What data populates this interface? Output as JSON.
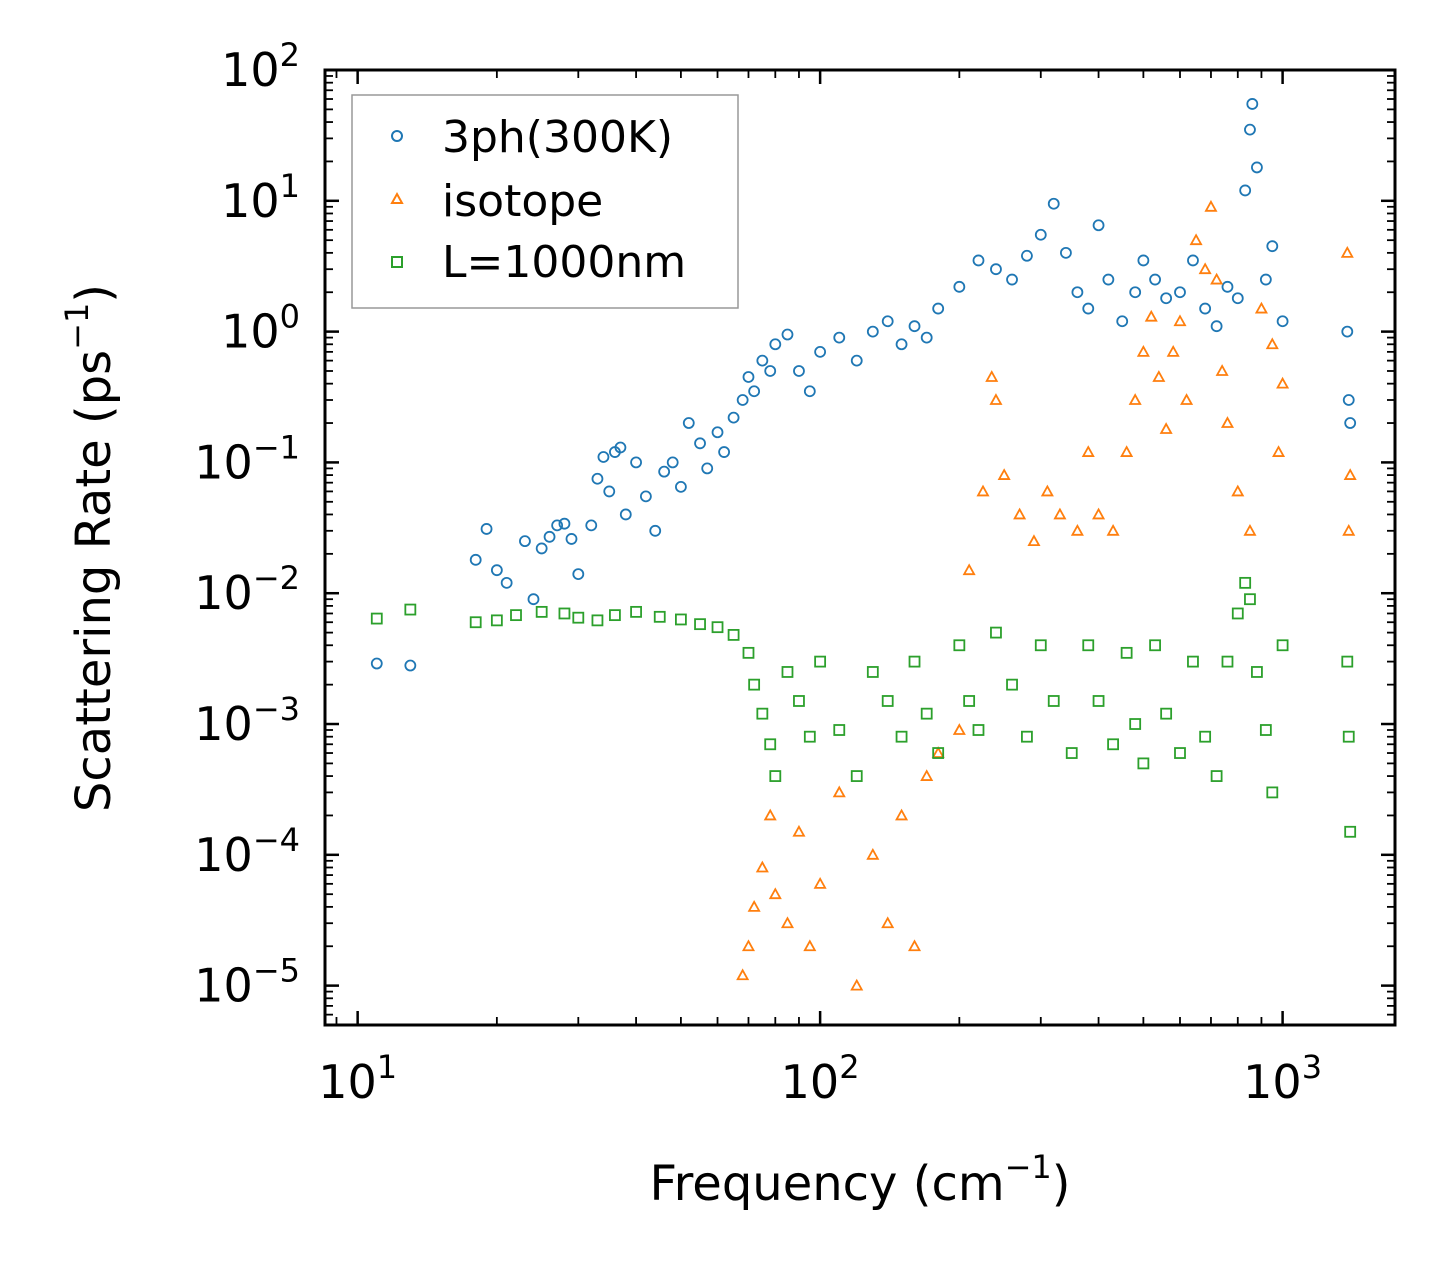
{
  "chart_data": {
    "type": "scatter",
    "title": "",
    "xlabel": {
      "text": "Frequency (cm",
      "sup": "−1",
      "tail": ")"
    },
    "ylabel": {
      "text": "Scattering Rate (ps",
      "sup": "−1",
      "tail": ")"
    },
    "xscale": "log",
    "yscale": "log",
    "xlim": [
      8.5,
      1750
    ],
    "ylim": [
      5e-06,
      100
    ],
    "x_ticks": [
      {
        "value": 10,
        "base": "10",
        "exp": "1"
      },
      {
        "value": 100,
        "base": "10",
        "exp": "2"
      },
      {
        "value": 1000,
        "base": "10",
        "exp": "3"
      }
    ],
    "y_ticks": [
      {
        "value": 100,
        "base": "10",
        "exp": "2"
      },
      {
        "value": 10,
        "base": "10",
        "exp": "1"
      },
      {
        "value": 1,
        "base": "10",
        "exp": "0"
      },
      {
        "value": 0.1,
        "base": "10",
        "exp": "−1"
      },
      {
        "value": 0.01,
        "base": "10",
        "exp": "−2"
      },
      {
        "value": 0.001,
        "base": "10",
        "exp": "−3"
      },
      {
        "value": 0.0001,
        "base": "10",
        "exp": "−4"
      },
      {
        "value": 1e-05,
        "base": "10",
        "exp": "−5"
      }
    ],
    "legend_position": "top-left",
    "series": [
      {
        "name": "3ph(300K)",
        "marker": "circle",
        "color": "#1f77b4",
        "points": [
          [
            11,
            0.0029
          ],
          [
            13,
            0.0028
          ],
          [
            18,
            0.018
          ],
          [
            19,
            0.031
          ],
          [
            20,
            0.015
          ],
          [
            21,
            0.012
          ],
          [
            23,
            0.025
          ],
          [
            24,
            0.009
          ],
          [
            25,
            0.022
          ],
          [
            26,
            0.027
          ],
          [
            27,
            0.033
          ],
          [
            28,
            0.034
          ],
          [
            29,
            0.026
          ],
          [
            30,
            0.014
          ],
          [
            32,
            0.033
          ],
          [
            33,
            0.075
          ],
          [
            34,
            0.11
          ],
          [
            35,
            0.06
          ],
          [
            36,
            0.12
          ],
          [
            37,
            0.13
          ],
          [
            38,
            0.04
          ],
          [
            40,
            0.1
          ],
          [
            42,
            0.055
          ],
          [
            44,
            0.03
          ],
          [
            46,
            0.085
          ],
          [
            48,
            0.1
          ],
          [
            50,
            0.065
          ],
          [
            52,
            0.2
          ],
          [
            55,
            0.14
          ],
          [
            57,
            0.09
          ],
          [
            60,
            0.17
          ],
          [
            62,
            0.12
          ],
          [
            65,
            0.22
          ],
          [
            68,
            0.3
          ],
          [
            70,
            0.45
          ],
          [
            72,
            0.35
          ],
          [
            75,
            0.6
          ],
          [
            78,
            0.5
          ],
          [
            80,
            0.8
          ],
          [
            85,
            0.95
          ],
          [
            90,
            0.5
          ],
          [
            95,
            0.35
          ],
          [
            100,
            0.7
          ],
          [
            110,
            0.9
          ],
          [
            120,
            0.6
          ],
          [
            130,
            1.0
          ],
          [
            140,
            1.2
          ],
          [
            150,
            0.8
          ],
          [
            160,
            1.1
          ],
          [
            170,
            0.9
          ],
          [
            180,
            1.5
          ],
          [
            200,
            2.2
          ],
          [
            220,
            3.5
          ],
          [
            240,
            3.0
          ],
          [
            260,
            2.5
          ],
          [
            280,
            3.8
          ],
          [
            300,
            5.5
          ],
          [
            320,
            9.5
          ],
          [
            340,
            4.0
          ],
          [
            360,
            2.0
          ],
          [
            380,
            1.5
          ],
          [
            400,
            6.5
          ],
          [
            420,
            2.5
          ],
          [
            450,
            1.2
          ],
          [
            480,
            2.0
          ],
          [
            500,
            3.5
          ],
          [
            530,
            2.5
          ],
          [
            560,
            1.8
          ],
          [
            600,
            2.0
          ],
          [
            640,
            3.5
          ],
          [
            680,
            1.5
          ],
          [
            720,
            1.1
          ],
          [
            760,
            2.2
          ],
          [
            800,
            1.8
          ],
          [
            830,
            12.0
          ],
          [
            850,
            35.0
          ],
          [
            860,
            55.0
          ],
          [
            880,
            18.0
          ],
          [
            920,
            2.5
          ],
          [
            950,
            4.5
          ],
          [
            1000,
            1.2
          ],
          [
            1380,
            1.0
          ],
          [
            1390,
            0.3
          ],
          [
            1400,
            0.2
          ]
        ]
      },
      {
        "name": "isotope",
        "marker": "triangle",
        "color": "#ff7f0e",
        "points": [
          [
            68,
            1.2e-05
          ],
          [
            70,
            2e-05
          ],
          [
            72,
            4e-05
          ],
          [
            75,
            8e-05
          ],
          [
            78,
            0.0002
          ],
          [
            80,
            5e-05
          ],
          [
            85,
            3e-05
          ],
          [
            90,
            0.00015
          ],
          [
            95,
            2e-05
          ],
          [
            100,
            6e-05
          ],
          [
            110,
            0.0003
          ],
          [
            120,
            1e-05
          ],
          [
            130,
            0.0001
          ],
          [
            140,
            3e-05
          ],
          [
            150,
            0.0002
          ],
          [
            160,
            2e-05
          ],
          [
            170,
            0.0004
          ],
          [
            180,
            0.0006
          ],
          [
            200,
            0.0009
          ],
          [
            210,
            0.015
          ],
          [
            225,
            0.06
          ],
          [
            235,
            0.45
          ],
          [
            240,
            0.3
          ],
          [
            250,
            0.08
          ],
          [
            270,
            0.04
          ],
          [
            290,
            0.025
          ],
          [
            310,
            0.06
          ],
          [
            330,
            0.04
          ],
          [
            360,
            0.03
          ],
          [
            380,
            0.12
          ],
          [
            400,
            0.04
          ],
          [
            430,
            0.03
          ],
          [
            460,
            0.12
          ],
          [
            480,
            0.3
          ],
          [
            500,
            0.7
          ],
          [
            520,
            1.3
          ],
          [
            540,
            0.45
          ],
          [
            560,
            0.18
          ],
          [
            580,
            0.7
          ],
          [
            600,
            1.2
          ],
          [
            620,
            0.3
          ],
          [
            650,
            5.0
          ],
          [
            680,
            3.0
          ],
          [
            700,
            9.0
          ],
          [
            720,
            2.5
          ],
          [
            740,
            0.5
          ],
          [
            760,
            0.2
          ],
          [
            800,
            0.06
          ],
          [
            850,
            0.03
          ],
          [
            900,
            1.5
          ],
          [
            950,
            0.8
          ],
          [
            980,
            0.12
          ],
          [
            1000,
            0.4
          ],
          [
            1380,
            4.0
          ],
          [
            1400,
            0.08
          ],
          [
            1390,
            0.03
          ]
        ]
      },
      {
        "name": "L=1000nm",
        "marker": "square",
        "color": "#2ca02c",
        "points": [
          [
            11,
            0.0064
          ],
          [
            13,
            0.0075
          ],
          [
            18,
            0.006
          ],
          [
            20,
            0.0062
          ],
          [
            22,
            0.0068
          ],
          [
            25,
            0.0072
          ],
          [
            28,
            0.007
          ],
          [
            30,
            0.0065
          ],
          [
            33,
            0.0062
          ],
          [
            36,
            0.0068
          ],
          [
            40,
            0.0072
          ],
          [
            45,
            0.0066
          ],
          [
            50,
            0.0063
          ],
          [
            55,
            0.0058
          ],
          [
            60,
            0.0055
          ],
          [
            65,
            0.0048
          ],
          [
            70,
            0.0035
          ],
          [
            72,
            0.002
          ],
          [
            75,
            0.0012
          ],
          [
            78,
            0.0007
          ],
          [
            80,
            0.0004
          ],
          [
            85,
            0.0025
          ],
          [
            90,
            0.0015
          ],
          [
            95,
            0.0008
          ],
          [
            100,
            0.003
          ],
          [
            110,
            0.0009
          ],
          [
            120,
            0.0004
          ],
          [
            130,
            0.0025
          ],
          [
            140,
            0.0015
          ],
          [
            150,
            0.0008
          ],
          [
            160,
            0.003
          ],
          [
            170,
            0.0012
          ],
          [
            180,
            0.0006
          ],
          [
            200,
            0.004
          ],
          [
            210,
            0.0015
          ],
          [
            220,
            0.0009
          ],
          [
            240,
            0.005
          ],
          [
            260,
            0.002
          ],
          [
            280,
            0.0008
          ],
          [
            300,
            0.004
          ],
          [
            320,
            0.0015
          ],
          [
            350,
            0.0006
          ],
          [
            380,
            0.004
          ],
          [
            400,
            0.0015
          ],
          [
            430,
            0.0007
          ],
          [
            460,
            0.0035
          ],
          [
            480,
            0.001
          ],
          [
            500,
            0.0005
          ],
          [
            530,
            0.004
          ],
          [
            560,
            0.0012
          ],
          [
            600,
            0.0006
          ],
          [
            640,
            0.003
          ],
          [
            680,
            0.0008
          ],
          [
            720,
            0.0004
          ],
          [
            760,
            0.003
          ],
          [
            800,
            0.007
          ],
          [
            830,
            0.012
          ],
          [
            850,
            0.009
          ],
          [
            880,
            0.0025
          ],
          [
            920,
            0.0009
          ],
          [
            950,
            0.0003
          ],
          [
            1000,
            0.004
          ],
          [
            1380,
            0.003
          ],
          [
            1390,
            0.0008
          ],
          [
            1400,
            0.00015
          ]
        ]
      }
    ]
  }
}
